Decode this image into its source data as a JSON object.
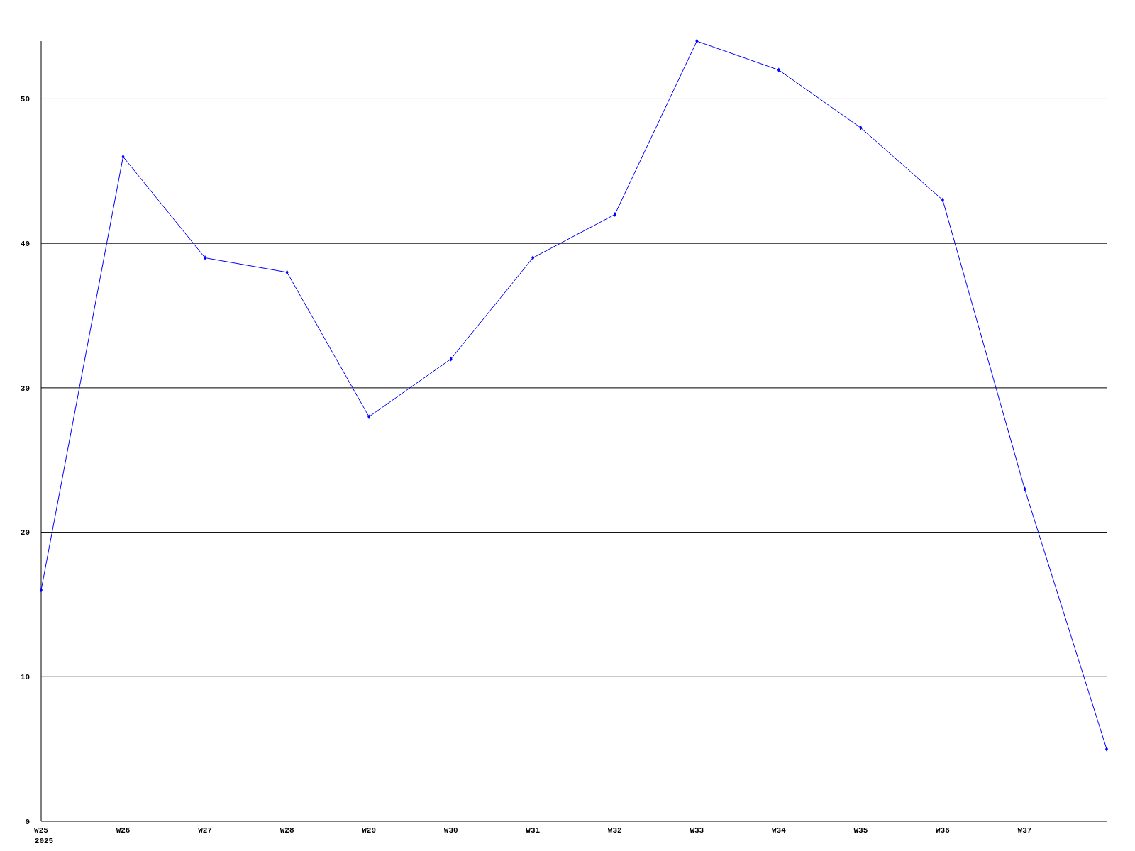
{
  "chart_data": {
    "type": "line",
    "categories": [
      "W25",
      "W26",
      "W27",
      "W28",
      "W29",
      "W30",
      "W31",
      "W32",
      "W33",
      "W34",
      "W35",
      "W36",
      "W37",
      null
    ],
    "series": [
      {
        "color": "#0000ff",
        "values": [
          16,
          46,
          39,
          38,
          28,
          32,
          39,
          42,
          54,
          52,
          48,
          43,
          23,
          5
        ]
      }
    ],
    "ylim": [
      0,
      54
    ],
    "yticks": [
      0,
      10,
      20,
      30,
      40,
      50
    ],
    "grid": "y",
    "marker": "diamond",
    "line_style": "solid",
    "annotations": [
      "2025"
    ]
  }
}
